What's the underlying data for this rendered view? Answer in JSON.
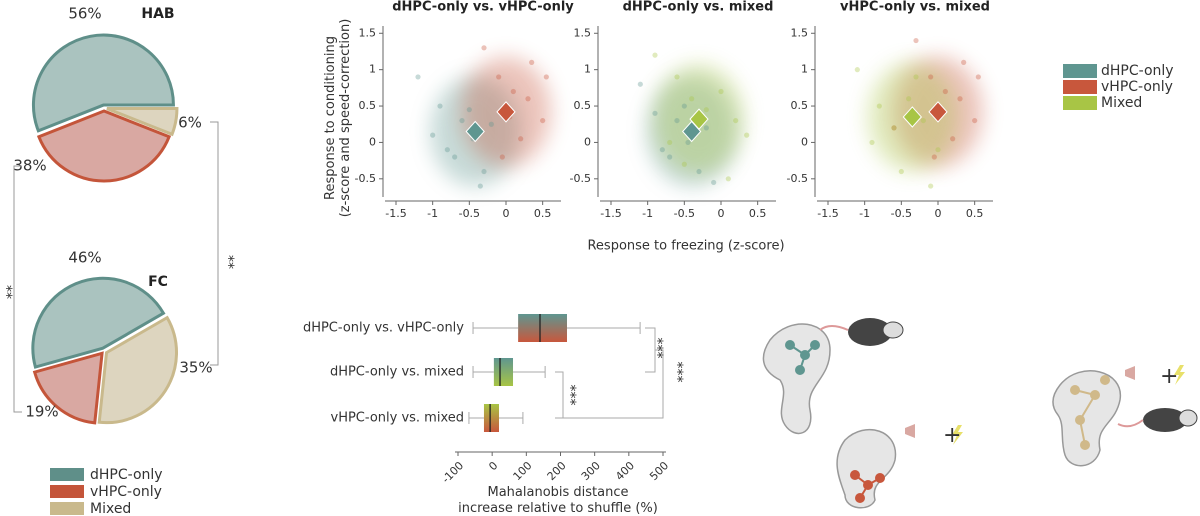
{
  "chart_data": [
    {
      "type": "pie",
      "title": "HAB",
      "labels": [
        "dHPC-only",
        "vHPC-only",
        "Mixed"
      ],
      "values": [
        56,
        38,
        6
      ],
      "value_labels": [
        "56%",
        "38%",
        "6%"
      ],
      "colors": [
        "#aac3bf",
        "#d9a8a2",
        "#ddd5bf"
      ],
      "edge_colors": [
        "#5f8f89",
        "#c4553a",
        "#c9b98c"
      ]
    },
    {
      "type": "pie",
      "title": "FC",
      "values": [
        46,
        19,
        35
      ],
      "value_labels": [
        "46%",
        "19%",
        "35%"
      ],
      "colors": [
        "#aac3bf",
        "#d9a8a2",
        "#ddd5bf"
      ],
      "edge_colors": [
        "#5f8f89",
        "#c4553a",
        "#c9b98c"
      ],
      "comparisons": [
        "**",
        "**"
      ]
    },
    {
      "type": "scatter",
      "title": "dHPC-only vs. vHPC-only",
      "ylabel": "Response to conditioning\n(z-score and speed-correction)",
      "xlim": [
        -1.65,
        0.75
      ],
      "ylim": [
        -0.75,
        1.6
      ],
      "xticks": [
        -1.5,
        -1,
        -0.5,
        0,
        0.5
      ],
      "yticks": [
        -0.5,
        0,
        0.5,
        1,
        1.5
      ],
      "series": [
        {
          "name": "dHPC-only",
          "color": "#5f9690",
          "x": [
            -1.2,
            -0.9,
            -0.7,
            -0.6,
            -0.45,
            -0.3,
            -0.2,
            -0.8,
            -0.5,
            -1.0,
            -0.35
          ],
          "y": [
            0.9,
            0.5,
            -0.2,
            0.3,
            0.05,
            -0.4,
            0.25,
            -0.1,
            0.45,
            0.1,
            -0.6
          ],
          "center": [
            -0.42,
            0.15
          ]
        },
        {
          "name": "vHPC-only",
          "color": "#c8573c",
          "x": [
            -0.3,
            -0.1,
            0.1,
            0.3,
            0.5,
            0.2,
            -0.05,
            0.35,
            0.55,
            0.05
          ],
          "y": [
            1.3,
            0.9,
            0.7,
            0.6,
            0.3,
            0.05,
            -0.2,
            1.1,
            0.9,
            0.35
          ],
          "center": [
            0,
            0.42
          ]
        }
      ]
    },
    {
      "type": "scatter",
      "title": "dHPC-only vs. mixed",
      "xlabel": "Response to freezing (z-score)",
      "xlim": [
        -1.65,
        0.75
      ],
      "ylim": [
        -0.75,
        1.6
      ],
      "xticks": [
        -1.5,
        -1,
        -0.5,
        0,
        0.5
      ],
      "yticks": [
        -0.5,
        0,
        0.5,
        1,
        1.5
      ],
      "series": [
        {
          "name": "dHPC-only",
          "color": "#5f9690",
          "x": [
            -1.1,
            -0.9,
            -0.7,
            -0.6,
            -0.45,
            -0.3,
            -0.2,
            -0.8,
            -0.5,
            -0.1
          ],
          "y": [
            0.8,
            0.4,
            -0.2,
            0.3,
            0.0,
            -0.4,
            0.2,
            -0.1,
            0.5,
            -0.55
          ],
          "center": [
            -0.4,
            0.15
          ]
        },
        {
          "name": "Mixed",
          "color": "#a8c545",
          "x": [
            -0.9,
            -0.6,
            -0.4,
            -0.2,
            0.0,
            0.2,
            0.35,
            -0.5,
            0.1,
            -0.7
          ],
          "y": [
            1.2,
            0.9,
            0.6,
            0.45,
            0.7,
            0.3,
            0.1,
            -0.3,
            -0.5,
            0.0
          ],
          "center": [
            -0.3,
            0.32
          ]
        }
      ]
    },
    {
      "type": "scatter",
      "title": "vHPC-only vs. mixed",
      "xlim": [
        -1.65,
        0.75
      ],
      "ylim": [
        -0.75,
        1.6
      ],
      "xticks": [
        -1.5,
        -1,
        -0.5,
        0,
        0.5
      ],
      "yticks": [
        -0.5,
        0,
        0.5,
        1,
        1.5
      ],
      "series": [
        {
          "name": "vHPC-only",
          "color": "#c8573c",
          "x": [
            -0.3,
            -0.1,
            0.1,
            0.3,
            0.5,
            0.2,
            -0.05,
            0.35,
            0.55,
            -0.6
          ],
          "y": [
            1.4,
            0.9,
            0.7,
            0.6,
            0.3,
            0.05,
            -0.2,
            1.1,
            0.9,
            0.2
          ],
          "center": [
            0,
            0.42
          ]
        },
        {
          "name": "Mixed",
          "color": "#a8c545",
          "x": [
            -1.1,
            -0.8,
            -0.6,
            -0.4,
            -0.2,
            0.0,
            -0.5,
            -0.3,
            -0.9,
            -0.1
          ],
          "y": [
            1.0,
            0.5,
            0.2,
            0.6,
            0.3,
            -0.1,
            -0.4,
            0.9,
            0.0,
            -0.6
          ],
          "center": [
            -0.35,
            0.35
          ]
        }
      ]
    },
    {
      "type": "box",
      "xlabel": "Mahalanobis distance\nincrease relative to shuffle (%)",
      "categories": [
        "dHPC-only vs. vHPC-only",
        "dHPC-only vs. mixed",
        "vHPC-only vs. mixed"
      ],
      "xlim": [
        -100,
        500
      ],
      "xticks": [
        -100,
        0,
        100,
        200,
        300,
        400,
        500
      ],
      "boxes": [
        {
          "whisker_low": -56,
          "q1": 76,
          "median": 140,
          "q3": 219,
          "whisker_high": 433,
          "colors": [
            "#5f9690",
            "#c8573c"
          ]
        },
        {
          "whisker_low": -56,
          "q1": 5,
          "median": 23,
          "q3": 61,
          "whisker_high": 155,
          "colors": [
            "#5f9690",
            "#a8c545"
          ]
        },
        {
          "whisker_low": -68,
          "q1": -24,
          "median": -6,
          "q3": 20,
          "whisker_high": 90,
          "colors": [
            "#a8c545",
            "#c8573c"
          ]
        }
      ],
      "comparisons": [
        "***",
        "***",
        "***"
      ]
    }
  ]
}
